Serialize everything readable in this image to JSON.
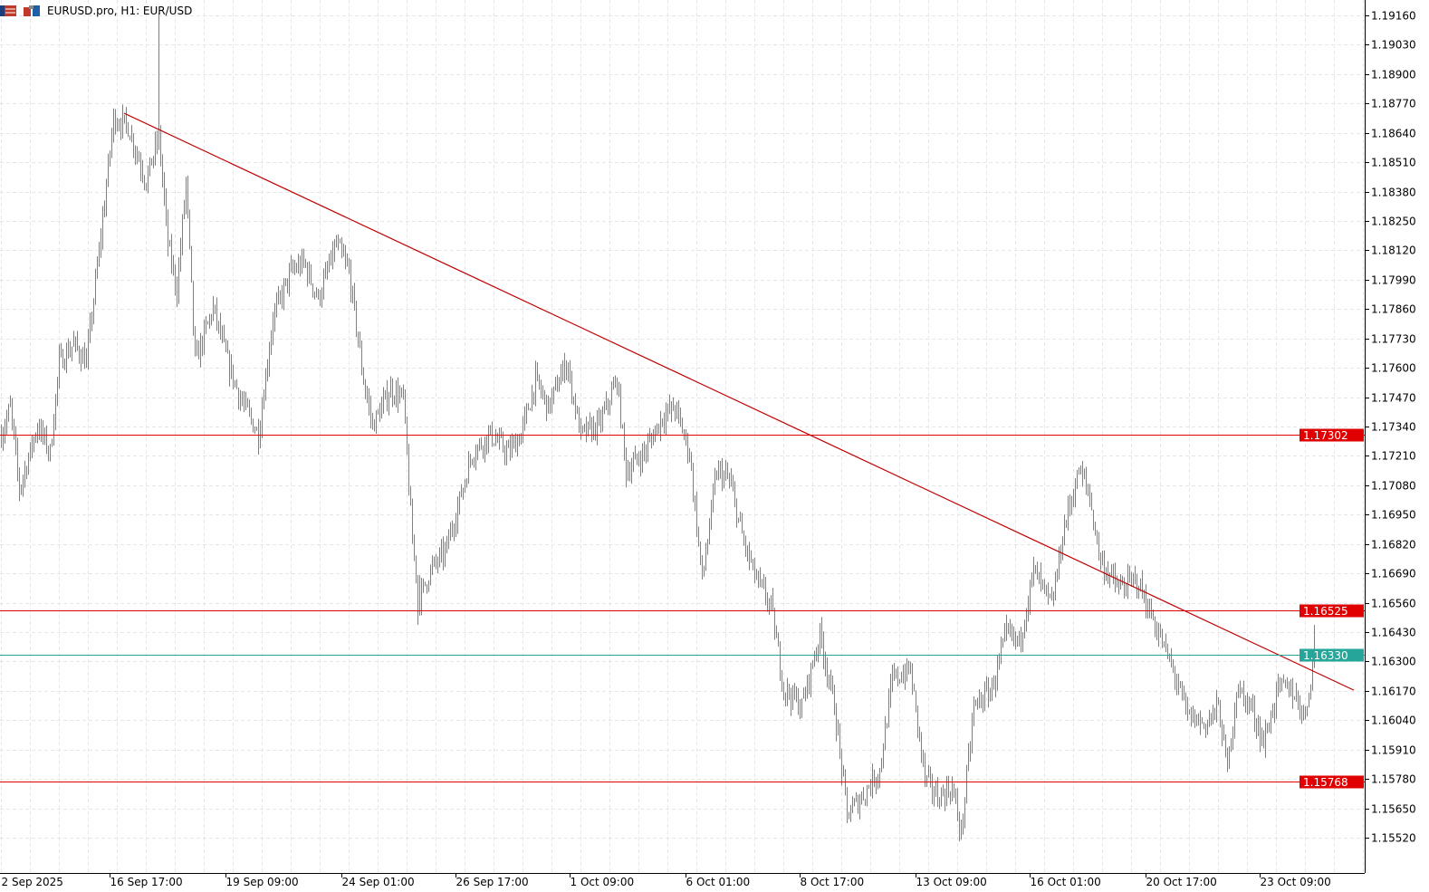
{
  "header": {
    "title": "EURUSD.pro, H1:  EUR/USD",
    "icons": [
      "chart-list-icon",
      "symbol-icon"
    ]
  },
  "colors": {
    "bull": "#26a69a",
    "bear": "#ef5350",
    "level": "#e00000",
    "trendline": "#c00000",
    "bid": "#26a69a",
    "grid": "#e6e6e6",
    "axis": "#000000"
  },
  "chart_data": {
    "type": "ohlc",
    "symbol": "EURUSD.pro",
    "timeframe": "H1",
    "ylim": [
      1.1552,
      1.1916
    ],
    "grid": true,
    "y_ticks": [
      "1.19160",
      "1.19030",
      "1.18900",
      "1.18770",
      "1.18640",
      "1.18510",
      "1.18380",
      "1.18250",
      "1.18120",
      "1.17990",
      "1.17860",
      "1.17730",
      "1.17600",
      "1.17470",
      "1.17340",
      "1.17210",
      "1.17080",
      "1.16950",
      "1.16820",
      "1.16690",
      "1.16560",
      "1.16430",
      "1.16300",
      "1.16170",
      "1.16040",
      "1.15910",
      "1.15780",
      "1.15650",
      "1.15520"
    ],
    "x_ticks": [
      {
        "label": "2 Sep 2025",
        "bar": 0
      },
      {
        "label": "16 Sep 17:00",
        "bar": 60
      },
      {
        "label": "19 Sep 09:00",
        "bar": 124
      },
      {
        "label": "24 Sep 01:00",
        "bar": 188
      },
      {
        "label": "26 Sep 17:00",
        "bar": 251
      },
      {
        "label": "1 Oct 09:00",
        "bar": 314
      },
      {
        "label": "6 Oct 01:00",
        "bar": 378
      },
      {
        "label": "8 Oct 17:00",
        "bar": 441
      },
      {
        "label": "13 Oct 09:00",
        "bar": 505
      },
      {
        "label": "16 Oct 01:00",
        "bar": 568
      },
      {
        "label": "20 Oct 17:00",
        "bar": 632
      },
      {
        "label": "23 Oct 09:00",
        "bar": 695
      }
    ],
    "price_path": [
      [
        0,
        1.17304
      ],
      [
        5,
        1.17424
      ],
      [
        10,
        1.17063
      ],
      [
        20,
        1.17344
      ],
      [
        27,
        1.17224
      ],
      [
        32,
        1.17625
      ],
      [
        40,
        1.17705
      ],
      [
        47,
        1.17625
      ],
      [
        55,
        1.18186
      ],
      [
        62,
        1.18707
      ],
      [
        70,
        1.18667
      ],
      [
        80,
        1.18426
      ],
      [
        87,
        1.18627
      ],
      [
        92,
        1.18146
      ],
      [
        97,
        1.17945
      ],
      [
        102,
        1.18426
      ],
      [
        107,
        1.17625
      ],
      [
        117,
        1.17865
      ],
      [
        125,
        1.17625
      ],
      [
        132,
        1.17464
      ],
      [
        142,
        1.17304
      ],
      [
        150,
        1.17825
      ],
      [
        160,
        1.18025
      ],
      [
        167,
        1.18065
      ],
      [
        175,
        1.17905
      ],
      [
        185,
        1.18146
      ],
      [
        192,
        1.18025
      ],
      [
        200,
        1.17545
      ],
      [
        205,
        1.17344
      ],
      [
        215,
        1.17504
      ],
      [
        222,
        1.17464
      ],
      [
        227,
        1.16823
      ],
      [
        231,
        1.16582
      ],
      [
        237,
        1.16703
      ],
      [
        245,
        1.16783
      ],
      [
        252,
        1.16983
      ],
      [
        260,
        1.17224
      ],
      [
        270,
        1.17304
      ],
      [
        280,
        1.17224
      ],
      [
        287,
        1.17304
      ],
      [
        295,
        1.17545
      ],
      [
        302,
        1.17424
      ],
      [
        312,
        1.17625
      ],
      [
        320,
        1.17304
      ],
      [
        330,
        1.17344
      ],
      [
        340,
        1.17545
      ],
      [
        345,
        1.17143
      ],
      [
        355,
        1.17224
      ],
      [
        365,
        1.17384
      ],
      [
        372,
        1.17424
      ],
      [
        380,
        1.17224
      ],
      [
        387,
        1.16662
      ],
      [
        395,
        1.17143
      ],
      [
        402,
        1.17103
      ],
      [
        410,
        1.16823
      ],
      [
        417,
        1.16662
      ],
      [
        425,
        1.16542
      ],
      [
        432,
        1.16181
      ],
      [
        442,
        1.16101
      ],
      [
        452,
        1.16422
      ],
      [
        460,
        1.16101
      ],
      [
        467,
        1.1562
      ],
      [
        475,
        1.157
      ],
      [
        485,
        1.1582
      ],
      [
        492,
        1.16221
      ],
      [
        502,
        1.16261
      ],
      [
        510,
        1.1578
      ],
      [
        517,
        1.157
      ],
      [
        525,
        1.1574
      ],
      [
        530,
        1.1554
      ],
      [
        537,
        1.16101
      ],
      [
        547,
        1.16181
      ],
      [
        555,
        1.16422
      ],
      [
        562,
        1.16382
      ],
      [
        570,
        1.16703
      ],
      [
        580,
        1.16542
      ],
      [
        587,
        1.16903
      ],
      [
        595,
        1.17143
      ],
      [
        600,
        1.17063
      ],
      [
        607,
        1.16743
      ],
      [
        617,
        1.16622
      ],
      [
        627,
        1.16662
      ],
      [
        637,
        1.16462
      ],
      [
        647,
        1.16261
      ],
      [
        655,
        1.16061
      ],
      [
        665,
        1.16021
      ],
      [
        672,
        1.16101
      ],
      [
        677,
        1.1582
      ],
      [
        682,
        1.16181
      ],
      [
        690,
        1.16101
      ],
      [
        697,
        1.1594
      ],
      [
        705,
        1.16181
      ],
      [
        712,
        1.16181
      ],
      [
        720,
        1.16061
      ],
      [
        725,
        1.16342
      ]
    ],
    "spikes": [
      [
        87,
        1.1917
      ],
      [
        230,
        1.16462
      ],
      [
        725,
        1.16462
      ]
    ],
    "levels": [
      {
        "price": 1.17302,
        "label": "1.17302",
        "kind": "resistance"
      },
      {
        "price": 1.16525,
        "label": "1.16525",
        "kind": "support"
      },
      {
        "price": 1.15768,
        "label": "1.15768",
        "kind": "support"
      },
      {
        "price": 1.1633,
        "label": "1.16330",
        "kind": "bid"
      }
    ],
    "trendline": {
      "from": [
        68,
        1.18727
      ],
      "to": [
        747,
        1.16173
      ]
    }
  }
}
